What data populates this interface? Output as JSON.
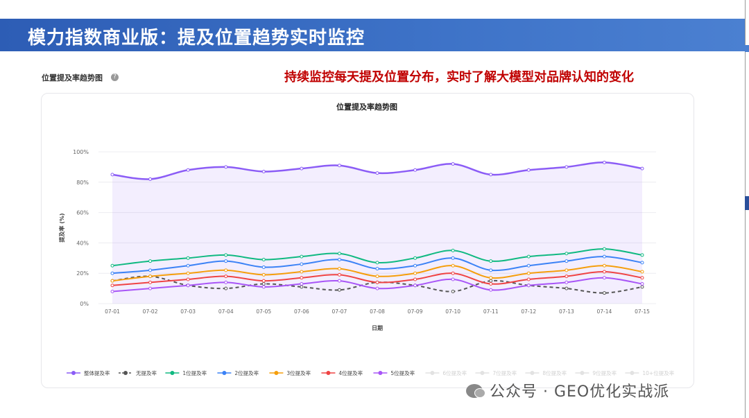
{
  "page": {
    "banner_title": "模力指数商业版：提及位置趋势实时监控",
    "section_label": "位置提及率趋势图",
    "help_icon": "?",
    "headline": "持续监控每天提及位置分布，实时了解大模型对品牌认知的变化",
    "watermark": "公众号 · GEO优化实战派"
  },
  "colors": {
    "banner": "#3a6bc3",
    "headline": "#c00000"
  },
  "chart_data": {
    "type": "line",
    "title": "位置提及率趋势图",
    "xlabel": "日期",
    "ylabel": "提及率 (%)",
    "ylim": [
      0,
      100
    ],
    "yticks": [
      "0%",
      "20%",
      "40%",
      "60%",
      "80%",
      "100%"
    ],
    "ytick_values": [
      0,
      20,
      40,
      60,
      80,
      100
    ],
    "grid": true,
    "legend": "bottom",
    "categories": [
      "07-01",
      "07-02",
      "07-03",
      "07-04",
      "07-05",
      "07-06",
      "07-07",
      "07-08",
      "07-09",
      "07-10",
      "07-11",
      "07-12",
      "07-13",
      "07-14",
      "07-15"
    ],
    "series": [
      {
        "name": "整体提及率",
        "color": "#8b5cf6",
        "dash": false,
        "fill": true,
        "values": [
          85,
          82,
          88,
          90,
          87,
          89,
          91,
          86,
          88,
          92,
          85,
          88,
          90,
          93,
          89
        ]
      },
      {
        "name": "无提及率",
        "color": "#555555",
        "dash": true,
        "values": [
          15,
          18,
          12,
          10,
          13,
          11,
          9,
          14,
          12,
          8,
          15,
          12,
          10,
          7,
          11
        ]
      },
      {
        "name": "1位提及率",
        "color": "#10b981",
        "dash": false,
        "values": [
          25,
          28,
          30,
          32,
          29,
          31,
          33,
          27,
          30,
          35,
          28,
          31,
          33,
          36,
          32
        ]
      },
      {
        "name": "2位提及率",
        "color": "#3b82f6",
        "dash": false,
        "values": [
          20,
          22,
          25,
          28,
          24,
          26,
          29,
          23,
          25,
          30,
          22,
          25,
          28,
          31,
          27
        ]
      },
      {
        "name": "3位提及率",
        "color": "#f59e0b",
        "dash": false,
        "values": [
          15,
          18,
          20,
          22,
          19,
          21,
          23,
          18,
          20,
          25,
          17,
          20,
          22,
          25,
          21
        ]
      },
      {
        "name": "4位提及率",
        "color": "#ef4444",
        "dash": false,
        "values": [
          12,
          14,
          16,
          18,
          15,
          17,
          19,
          14,
          16,
          20,
          13,
          16,
          18,
          21,
          17
        ]
      },
      {
        "name": "5位提及率",
        "color": "#a855f7",
        "dash": false,
        "values": [
          8,
          10,
          12,
          14,
          11,
          13,
          15,
          10,
          12,
          16,
          9,
          12,
          14,
          17,
          13
        ]
      }
    ],
    "inactive_legend": [
      {
        "name": "6位提及率"
      },
      {
        "name": "7位提及率"
      },
      {
        "name": "8位提及率"
      },
      {
        "name": "9位提及率"
      },
      {
        "name": "10+位提及率"
      }
    ]
  }
}
